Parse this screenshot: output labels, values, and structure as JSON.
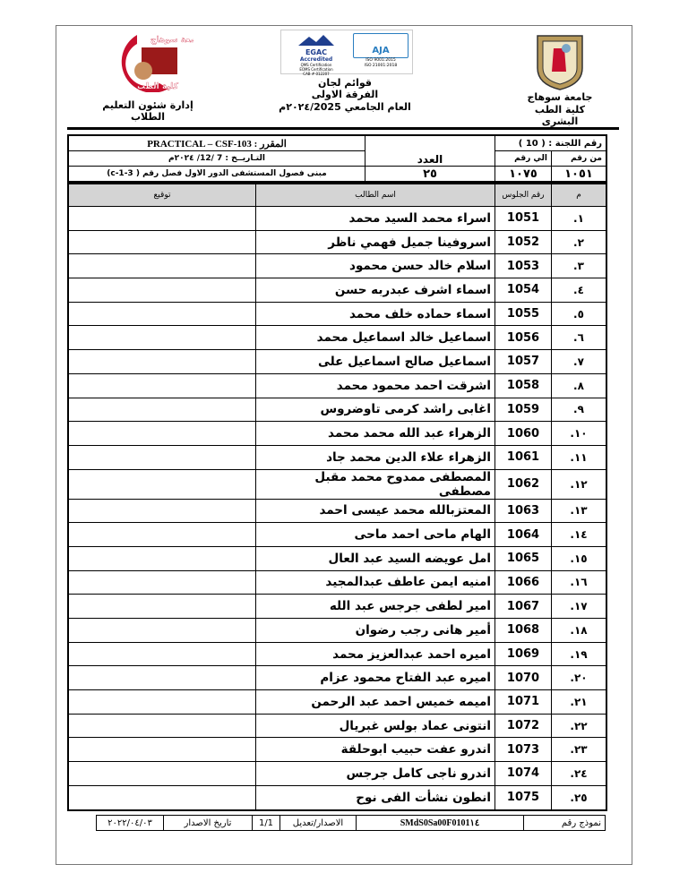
{
  "header": {
    "right": {
      "university": "جامعة سوهاج",
      "faculty": "كلية الطب البشرى"
    },
    "center": {
      "title": "قوائم لجان",
      "year_level": "الفرقة الاولى",
      "academic_year": "العام الجامعي ٢٠٢٤/2025م",
      "cert_left": {
        "brand": "EGAC",
        "sub": "Accredited",
        "lines": [
          "QMS Certification",
          "EOMS Certification",
          "CAB # 012207"
        ]
      },
      "cert_right": {
        "brand": "AJA",
        "lines": [
          "ISO 9001:2015",
          "ISO 21001:2018"
        ]
      }
    },
    "left": {
      "department": "إدارة شئون التعليم الطلاب",
      "logo_text_top": "جامعة سوهاج",
      "logo_text_bottom": "كلية الطب"
    }
  },
  "info": {
    "committee_label": "رقم اللجنة : ( 10 )",
    "course": "المقرر :  PRACTICAL – CSF-103",
    "date": "التـاريــخ :  7 /12/ ٢٠٢٤م",
    "location": "مبنى فصول المستشفى الدور الاول فصل رقم ( c-1-3)",
    "count_label": "العدد",
    "count_value": "٢٥",
    "from_label": "من رقم",
    "to_label": "الي رقم",
    "from_value": "١٠٥١",
    "to_value": "١٠٧٥"
  },
  "columns": {
    "index": "م",
    "seat": "رقم الجلوس",
    "name": "اسم الطالب",
    "signature": "توقيع"
  },
  "students": [
    {
      "i": "١.",
      "seat": "1051",
      "name": "اسراء محمد السيد محمد"
    },
    {
      "i": "٢.",
      "seat": "1052",
      "name": "اسروفينا جميل فهمي ناظر"
    },
    {
      "i": "٣.",
      "seat": "1053",
      "name": "اسلام خالد حسن محمود"
    },
    {
      "i": "٤.",
      "seat": "1054",
      "name": "اسماء اشرف عبدربه حسن"
    },
    {
      "i": "٥.",
      "seat": "1055",
      "name": "اسماء حماده خلف محمد"
    },
    {
      "i": "٦.",
      "seat": "1056",
      "name": "اسماعيل خالد اسماعيل محمد"
    },
    {
      "i": "٧.",
      "seat": "1057",
      "name": "اسماعيل صالح اسماعيل على"
    },
    {
      "i": "٨.",
      "seat": "1058",
      "name": "اشرقت احمد محمود محمد"
    },
    {
      "i": "٩.",
      "seat": "1059",
      "name": "اغابى راشد كرمى تاوضروس"
    },
    {
      "i": "١٠.",
      "seat": "1060",
      "name": "الزهراء عبد الله محمد محمد"
    },
    {
      "i": "١١.",
      "seat": "1061",
      "name": "الزهراء علاء الدين محمد جاد"
    },
    {
      "i": "١٢.",
      "seat": "1062",
      "name": "المصطفى ممدوح محمد مقبل مصطفى"
    },
    {
      "i": "١٣.",
      "seat": "1063",
      "name": "المعتزبالله محمد عيسى احمد"
    },
    {
      "i": "١٤.",
      "seat": "1064",
      "name": "الهام ماحى احمد ماحى"
    },
    {
      "i": "١٥.",
      "seat": "1065",
      "name": "امل عويضه السيد عبد العال"
    },
    {
      "i": "١٦.",
      "seat": "1066",
      "name": "امنيه ايمن عاطف عبدالمجيد"
    },
    {
      "i": "١٧.",
      "seat": "1067",
      "name": "امير لطفى جرجس عبد الله"
    },
    {
      "i": "١٨.",
      "seat": "1068",
      "name": "أمير هانى رجب رضوان"
    },
    {
      "i": "١٩.",
      "seat": "1069",
      "name": "اميره احمد عبدالعزيز محمد"
    },
    {
      "i": "٢٠.",
      "seat": "1070",
      "name": "اميره عبد الفتاح محمود عزام"
    },
    {
      "i": "٢١.",
      "seat": "1071",
      "name": "اميمه خميس احمد عبد الرحمن"
    },
    {
      "i": "٢٢.",
      "seat": "1072",
      "name": "انتونى عماد بولس غبريال"
    },
    {
      "i": "٢٣.",
      "seat": "1073",
      "name": "اندرو عفت حبيب ابوحلقة"
    },
    {
      "i": "٢٤.",
      "seat": "1074",
      "name": "اندرو ناجى كامل جرجس"
    },
    {
      "i": "٢٥.",
      "seat": "1075",
      "name": "انطون نشأت الفى نوح"
    }
  ],
  "footer": {
    "form_label": "نموذج رقم",
    "form_code": "SMdS0Sa00F0101١٤",
    "version_label": "الاصدار/تعديل",
    "version_value": "1/1",
    "issue_label": "تاريخ الاصدار",
    "issue_date": "٢٠٢٢/٠٤/٠٣"
  },
  "colors": {
    "logo_red": "#c8102e",
    "egac_blue": "#1f3f8f",
    "aja_blue": "#2a7ec0",
    "header_gray": "#d4d4d4"
  }
}
